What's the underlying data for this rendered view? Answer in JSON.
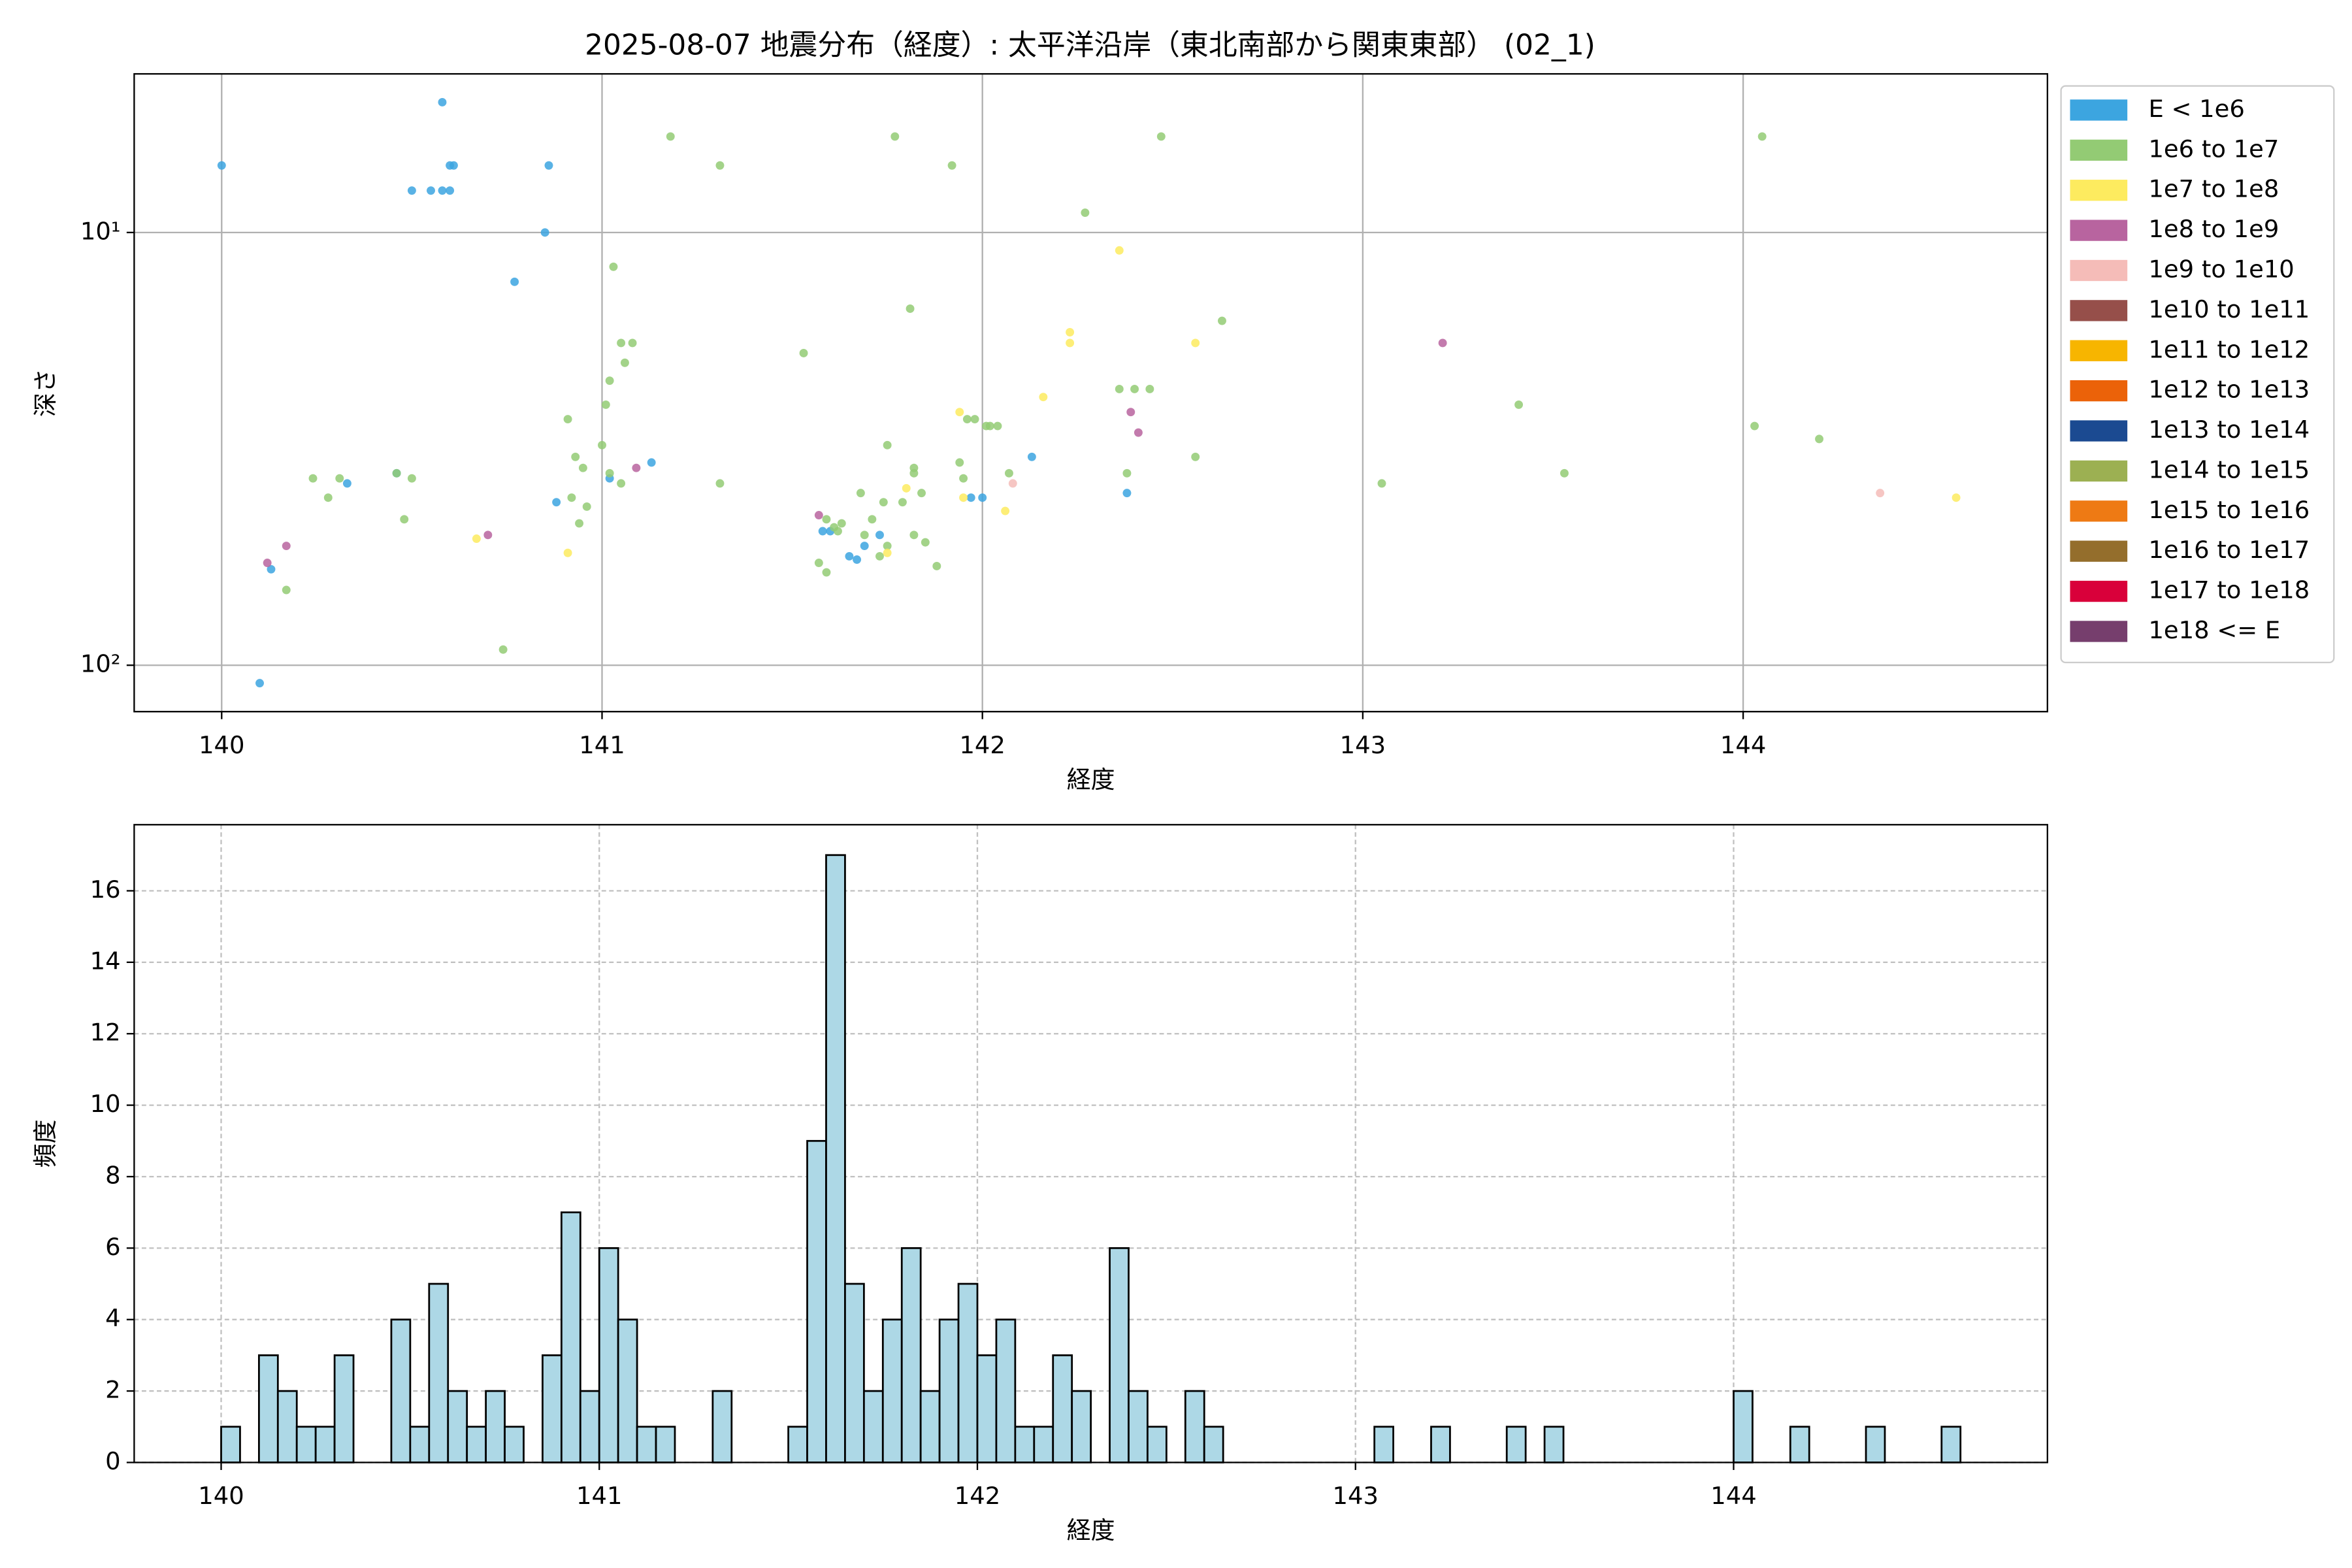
{
  "chart_data": [
    {
      "type": "scatter",
      "title": "2025-08-07 地震分布（経度）: 太平洋沿岸（東北南部から関東東部） (02_1)",
      "x_label": "経度",
      "y_label": "深さ",
      "xlim": [
        139.77,
        144.8
      ],
      "xticks": [
        140,
        141,
        142,
        143,
        144
      ],
      "ylim": [
        128,
        4.3
      ],
      "y_scale": "log",
      "yticks": [
        {
          "value": 10,
          "label": "10¹"
        },
        {
          "value": 100,
          "label": "10²"
        }
      ],
      "grid": true,
      "grid_linestyle": "solid",
      "legend": "outside upper right",
      "series": [
        {
          "name": "E < 1e6",
          "color": "#3ca5e0",
          "x": [
            140.0,
            140.58,
            140.5,
            140.55,
            140.58,
            140.6,
            140.6,
            140.61,
            140.86,
            140.85,
            140.77,
            141.13,
            141.02,
            140.88,
            140.33,
            140.46,
            140.13,
            140.1,
            141.58,
            141.6,
            141.69,
            141.65,
            141.67,
            141.73,
            141.97,
            142.0,
            142.13,
            142.38
          ],
          "y": [
            7,
            5,
            8,
            8,
            8,
            8,
            7,
            7,
            7,
            10,
            13,
            34,
            37,
            42,
            38,
            36,
            60,
            110,
            49,
            49,
            53,
            56,
            57,
            50,
            41,
            41,
            33,
            40
          ]
        },
        {
          "name": "1e6 to 1e7",
          "color": "#93cb74",
          "x": [
            141.18,
            141.31,
            141.77,
            141.92,
            142.27,
            142.47,
            144.05,
            141.03,
            141.81,
            141.53,
            142.63,
            141.05,
            141.08,
            141.06,
            141.02,
            141.01,
            140.91,
            141.0,
            140.93,
            140.95,
            141.02,
            141.05,
            141.31,
            140.96,
            140.92,
            140.94,
            140.5,
            140.46,
            140.31,
            140.24,
            140.28,
            140.48,
            140.17,
            140.74,
            142.36,
            142.4,
            142.44,
            143.41,
            144.03,
            144.2,
            142.56,
            142.38,
            143.53,
            143.05,
            141.75,
            141.82,
            141.82,
            141.94,
            141.95,
            141.84,
            141.79,
            141.68,
            141.71,
            141.69,
            141.82,
            141.85,
            141.88,
            141.96,
            141.98,
            142.01,
            142.02,
            142.04,
            142.07,
            141.57,
            141.59,
            141.59,
            141.61,
            141.63,
            141.62,
            141.75,
            141.74,
            141.73
          ],
          "y": [
            6,
            7,
            6,
            7,
            9,
            6,
            6,
            12,
            15,
            19,
            16,
            18,
            18,
            20,
            22,
            25,
            27,
            31,
            33,
            35,
            36,
            38,
            38,
            43,
            41,
            47,
            37,
            36,
            37,
            37,
            41,
            46,
            67,
            92,
            23,
            23,
            23,
            25,
            28,
            30,
            33,
            36,
            36,
            38,
            31,
            35,
            36,
            34,
            37,
            40,
            42,
            40,
            46,
            50,
            50,
            52,
            59,
            27,
            27,
            28,
            28,
            28,
            36,
            58,
            61,
            46,
            48,
            47,
            49,
            53,
            42,
            56
          ]
        },
        {
          "name": "1e7 to 1e8",
          "color": "#fdeb5f",
          "x": [
            142.36,
            142.23,
            142.23,
            142.56,
            142.16,
            141.94,
            141.8,
            141.95,
            142.06,
            140.67,
            140.91,
            144.56,
            141.75
          ],
          "y": [
            11,
            17,
            18,
            18,
            24,
            26,
            39,
            41,
            44,
            51,
            55,
            41,
            55
          ]
        },
        {
          "name": "1e8 to 1e9",
          "color": "#b8649f",
          "x": [
            143.21,
            142.39,
            142.41,
            141.09,
            141.57,
            140.7,
            140.17,
            140.12
          ],
          "y": [
            18,
            26,
            29,
            35,
            45,
            50,
            53,
            58
          ]
        },
        {
          "name": "1e9 to 1e10",
          "color": "#f5bcb8",
          "x": [
            142.08,
            144.36
          ],
          "y": [
            38,
            40
          ]
        },
        {
          "name": "1e10 to 1e11",
          "color": "#964f4a",
          "x": [],
          "y": []
        },
        {
          "name": "1e11 to 1e12",
          "color": "#f7b500",
          "x": [],
          "y": []
        },
        {
          "name": "1e12 to 1e13",
          "color": "#eb6209",
          "x": [],
          "y": []
        },
        {
          "name": "1e13 to 1e14",
          "color": "#1b4a91",
          "x": [],
          "y": []
        },
        {
          "name": "1e14 to 1e15",
          "color": "#9cb052",
          "x": [],
          "y": []
        },
        {
          "name": "1e15 to 1e16",
          "color": "#ee7a14",
          "x": [],
          "y": []
        },
        {
          "name": "1e16 to 1e17",
          "color": "#946e2c",
          "x": [],
          "y": []
        },
        {
          "name": "1e17 to 1e18",
          "color": "#d9003a",
          "x": [],
          "y": []
        },
        {
          "name": "1e18 <= E",
          "color": "#763e6d",
          "x": [],
          "y": []
        }
      ]
    },
    {
      "type": "histogram",
      "x_label": "経度",
      "y_label": "頻度",
      "xlim": [
        139.77,
        144.83
      ],
      "xticks": [
        140,
        141,
        142,
        143,
        144
      ],
      "ylim": [
        0,
        17.85
      ],
      "yticks": [
        0,
        2,
        4,
        6,
        8,
        10,
        12,
        14,
        16
      ],
      "grid": true,
      "grid_linestyle": "dashed",
      "color": "#add8e6",
      "edgecolor": "#000000",
      "bins": [
        140,
        140.05,
        140.1,
        140.15,
        140.2,
        140.25,
        140.3,
        140.35,
        140.4,
        140.45,
        140.5,
        140.55,
        140.6,
        140.65,
        140.7,
        140.75,
        140.8,
        140.85,
        140.9,
        140.95,
        141,
        141.05,
        141.1,
        141.15,
        141.2,
        141.25,
        141.3,
        141.35,
        141.4,
        141.45,
        141.5,
        141.55,
        141.6,
        141.65,
        141.7,
        141.75,
        141.8,
        141.85,
        141.9,
        141.95,
        142,
        142.05,
        142.1,
        142.15,
        142.2,
        142.25,
        142.3,
        142.35,
        142.4,
        142.45,
        142.5,
        142.55,
        142.6,
        142.65,
        142.7,
        142.75,
        142.8,
        142.85,
        142.9,
        142.95,
        143,
        143.05,
        143.1,
        143.15,
        143.2,
        143.25,
        143.3,
        143.35,
        143.4,
        143.45,
        143.5,
        143.55,
        143.6,
        143.65,
        143.7,
        143.75,
        143.8,
        143.85,
        143.9,
        143.95,
        144,
        144.05,
        144.1,
        144.15,
        144.2,
        144.25,
        144.3,
        144.35,
        144.4,
        144.45,
        144.5,
        144.55,
        144.6
      ],
      "values": [
        1,
        0,
        3,
        2,
        1,
        1,
        3,
        0,
        0,
        4,
        1,
        5,
        2,
        1,
        2,
        1,
        0,
        3,
        7,
        2,
        6,
        4,
        1,
        1,
        0,
        0,
        2,
        0,
        0,
        0,
        1,
        9,
        17,
        5,
        2,
        4,
        6,
        2,
        4,
        5,
        3,
        4,
        1,
        1,
        3,
        2,
        0,
        6,
        2,
        1,
        0,
        2,
        1,
        0,
        0,
        0,
        0,
        0,
        0,
        0,
        0,
        1,
        0,
        0,
        1,
        0,
        0,
        0,
        1,
        0,
        1,
        0,
        0,
        0,
        0,
        0,
        0,
        0,
        0,
        0,
        2,
        0,
        0,
        1,
        0,
        0,
        0,
        1,
        0,
        0,
        0,
        1
      ]
    }
  ]
}
